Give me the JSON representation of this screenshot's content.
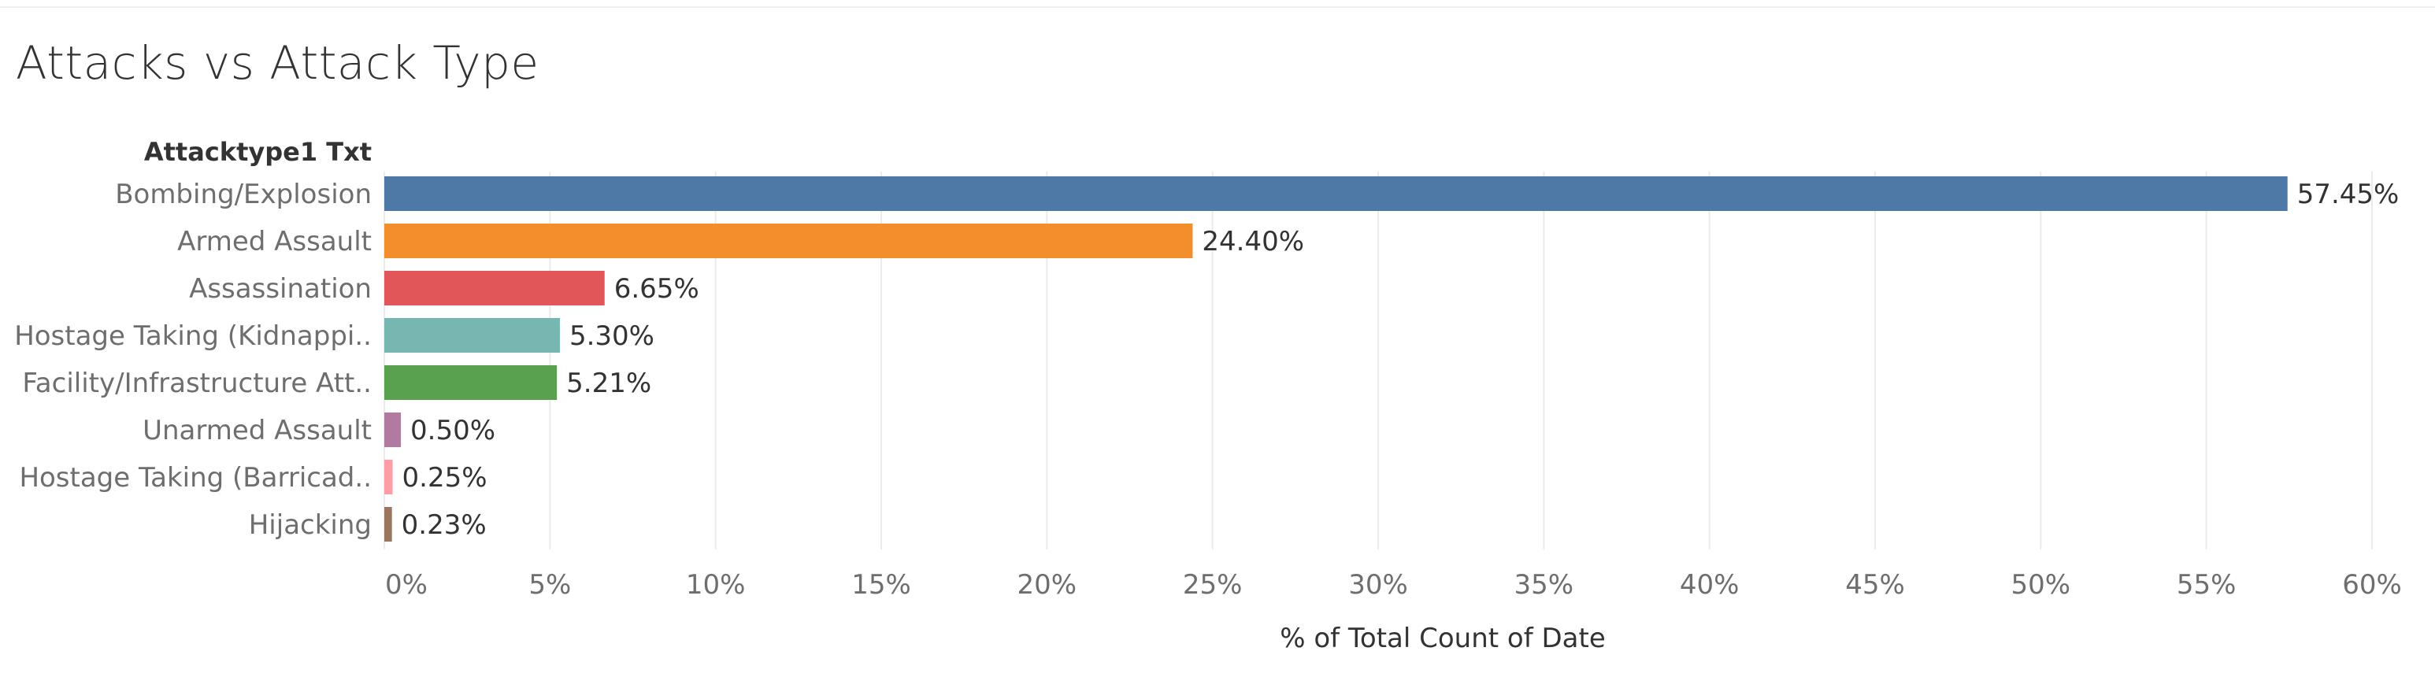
{
  "chart_data": {
    "type": "bar",
    "orientation": "horizontal",
    "title": "Attacks vs Attack Type",
    "row_header": "Attacktype1 Txt",
    "xlabel": "% of Total Count of Date",
    "ylabel": "",
    "categories": [
      "Bombing/Explosion",
      "Armed Assault",
      "Assassination",
      "Hostage Taking (Kidnappi..",
      "Facility/Infrastructure Att..",
      "Unarmed Assault",
      "Hostage Taking (Barricad..",
      "Hijacking"
    ],
    "values": [
      57.45,
      24.4,
      6.65,
      5.3,
      5.21,
      0.5,
      0.25,
      0.23
    ],
    "value_labels": [
      "57.45%",
      "24.40%",
      "6.65%",
      "5.30%",
      "5.21%",
      "0.50%",
      "0.25%",
      "0.23%"
    ],
    "colors": [
      "#4e79a7",
      "#f28e2b",
      "#e15759",
      "#76b7b2",
      "#59a14f",
      "#b07aa1",
      "#ff9da7",
      "#9c755f"
    ],
    "xlim": [
      0,
      60
    ],
    "x_ticks": [
      0,
      5,
      10,
      15,
      20,
      25,
      30,
      35,
      40,
      45,
      50,
      55,
      60
    ],
    "x_tick_labels": [
      "0%",
      "5%",
      "10%",
      "15%",
      "20%",
      "25%",
      "30%",
      "35%",
      "40%",
      "45%",
      "50%",
      "55%",
      "60%"
    ],
    "grid": true,
    "legend": "none"
  }
}
